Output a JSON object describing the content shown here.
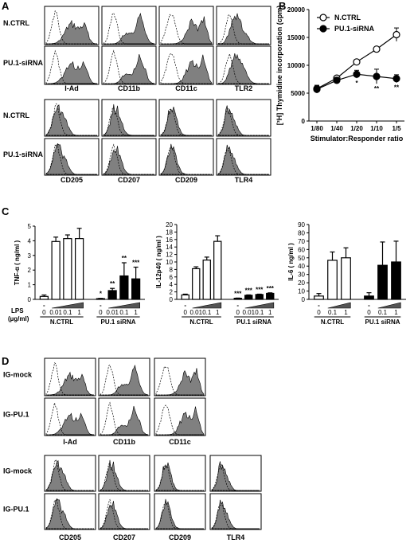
{
  "panels": {
    "A": "A",
    "B": "B",
    "C": "C",
    "D": "D"
  },
  "histA": {
    "rows1": [
      "N.CTRL",
      "PU.1-siRNA"
    ],
    "markers1": [
      "I-Ad",
      "CD11b",
      "CD11c",
      "TLR2"
    ],
    "rows2": [
      "N.CTRL",
      "PU.1-siRNA"
    ],
    "markers2": [
      "CD205",
      "CD207",
      "CD209",
      "TLR4"
    ]
  },
  "histD": {
    "rows1": [
      "IG-mock",
      "IG-PU.1"
    ],
    "markers1": [
      "I-Ad",
      "CD11b",
      "CD11c"
    ],
    "rows2": [
      "IG-mock",
      "IG-PU.1"
    ],
    "markers2": [
      "CD205",
      "CD207",
      "CD209",
      "TLR4"
    ]
  },
  "chart_data": [
    {
      "id": "B",
      "type": "line",
      "xlabel": "Stimulator:Responder ratio",
      "ylabel": "[³H] Thymidine incorporation (cpm)",
      "categories": [
        "1/80",
        "1/40",
        "1/20",
        "1/10",
        "1/5"
      ],
      "ylim": [
        0,
        20000
      ],
      "yticks": [
        "0",
        "5000",
        "10000",
        "15000",
        "20000"
      ],
      "series": [
        {
          "name": "N.CTRL",
          "marker": "open-circle",
          "values": [
            5800,
            7700,
            10600,
            12900,
            15500
          ],
          "err": [
            600,
            300,
            300,
            300,
            1200
          ]
        },
        {
          "name": "PU.1-siRNA",
          "marker": "filled-circle",
          "values": [
            5700,
            7300,
            8400,
            8000,
            7600
          ],
          "err": [
            700,
            500,
            700,
            1300,
            700
          ]
        }
      ],
      "annotations": [
        "*",
        "**",
        "**"
      ]
    },
    {
      "id": "C1",
      "type": "bar",
      "ylabel": "TNF-α ( ng/ml )",
      "ylim": [
        0,
        5
      ],
      "yticks": [
        "0",
        "1",
        "2",
        "3",
        "4",
        "5"
      ],
      "lps_label": "LPS",
      "lps_unit": "(µg/ml)",
      "dose_labels": [
        "0",
        "0.01",
        "0.1",
        "1",
        "0",
        "0.01",
        "0.1",
        "1"
      ],
      "groups": [
        "N.CTRL",
        "PU.1 siRNA"
      ],
      "values": [
        0.2,
        3.95,
        4.15,
        4.15,
        0.05,
        0.6,
        1.6,
        1.4
      ],
      "err": [
        0.1,
        0.3,
        0.25,
        0.7,
        0.02,
        0.15,
        0.9,
        0.8
      ],
      "annotations": [
        "*",
        "**",
        "**",
        "***"
      ]
    },
    {
      "id": "C2",
      "type": "bar",
      "ylabel": "IL-12p40 ( ng/ml )",
      "ylim": [
        0,
        20
      ],
      "yticks": [
        "0",
        "2",
        "4",
        "6",
        "8",
        "10",
        "12",
        "14",
        "16",
        "18",
        "20"
      ],
      "dose_labels": [
        "0",
        "0.01",
        "0.1",
        "1",
        "0",
        "0.01",
        "0.1",
        "1"
      ],
      "groups": [
        "N.CTRL",
        "PU.1 siRNA"
      ],
      "values": [
        1.2,
        8.2,
        10.5,
        15.5,
        0.3,
        1.1,
        1.3,
        1.6
      ],
      "err": [
        0.2,
        0.5,
        0.8,
        1.5,
        0.05,
        0.1,
        0.1,
        0.15
      ],
      "annotations": [
        "***",
        "***",
        "***",
        "***"
      ]
    },
    {
      "id": "C3",
      "type": "bar",
      "ylabel": "IL-6 ( ng/ml )",
      "ylim": [
        0,
        90
      ],
      "yticks": [
        "0",
        "10",
        "20",
        "30",
        "40",
        "50",
        "60",
        "70",
        "80",
        "90"
      ],
      "dose_labels": [
        "0",
        "0.1",
        "1",
        "0",
        "0.1",
        "1"
      ],
      "groups": [
        "N.CTRL",
        "PU.1 siRNA"
      ],
      "values": [
        4,
        47,
        50,
        4,
        41,
        45
      ],
      "err": [
        3,
        10,
        12,
        4,
        28,
        25
      ],
      "annotations": []
    }
  ]
}
